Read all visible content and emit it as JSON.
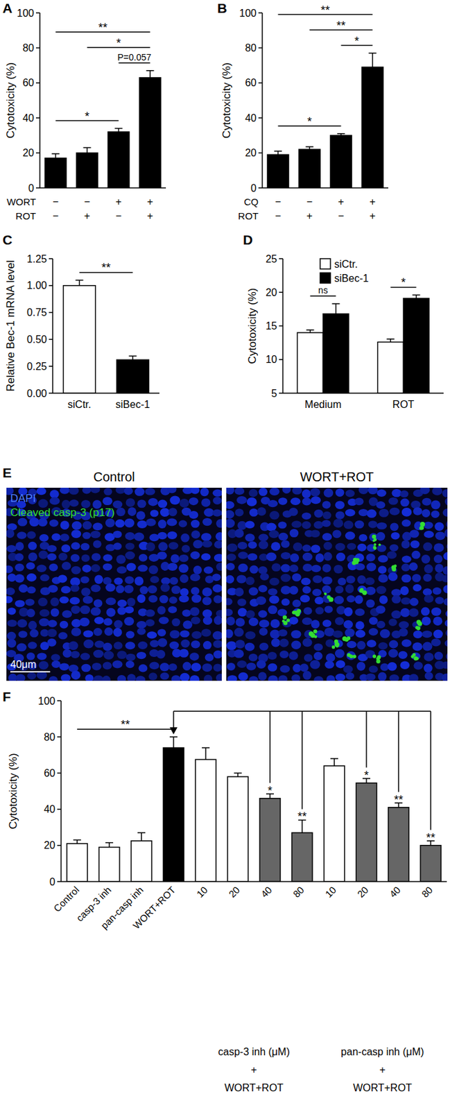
{
  "chart_data": [
    {
      "type": "bar",
      "title": "A",
      "y_label": "Cytotoxicity (%)",
      "categories": [
        null,
        null,
        null,
        null
      ],
      "x_rows": [
        {
          "label": "WORT",
          "values": [
            "−",
            "−",
            "+",
            "+"
          ]
        },
        {
          "label": "ROT",
          "values": [
            "−",
            "+",
            "−",
            "+"
          ]
        }
      ],
      "values": [
        17,
        20,
        32,
        63
      ],
      "errors": [
        2.5,
        3,
        2,
        4
      ],
      "color": "#000000",
      "ylim": [
        0,
        100
      ],
      "yticks": [
        0,
        20,
        40,
        60,
        80,
        100
      ],
      "annotations": [
        {
          "text": "**",
          "from": 0,
          "to": 3
        },
        {
          "text": "*",
          "from": 1,
          "to": 3
        },
        {
          "text": "P=0.057",
          "from": 2,
          "to": 3
        },
        {
          "text": "*",
          "from": 0,
          "to": 2
        }
      ]
    },
    {
      "type": "bar",
      "title": "B",
      "y_label": "Cytotoxicity (%)",
      "categories": [
        null,
        null,
        null,
        null
      ],
      "x_rows": [
        {
          "label": "CQ",
          "values": [
            "−",
            "−",
            "+",
            "+"
          ]
        },
        {
          "label": "ROT",
          "values": [
            "−",
            "+",
            "−",
            "+"
          ]
        }
      ],
      "values": [
        19,
        22,
        30,
        69
      ],
      "errors": [
        2,
        1.5,
        1,
        8
      ],
      "color": "#000000",
      "ylim": [
        0,
        100
      ],
      "yticks": [
        0,
        20,
        40,
        60,
        80,
        100
      ],
      "annotations": [
        {
          "text": "**",
          "from": 0,
          "to": 3
        },
        {
          "text": "**",
          "from": 1,
          "to": 3
        },
        {
          "text": "*",
          "from": 2,
          "to": 3
        },
        {
          "text": "*",
          "from": 0,
          "to": 2
        }
      ]
    },
    {
      "type": "bar",
      "title": "C",
      "y_label": "Relative Bec-1 mRNA level",
      "categories": [
        "siCtr.",
        "siBec-1"
      ],
      "values": [
        1.0,
        0.31
      ],
      "errors": [
        0.05,
        0.035
      ],
      "colors": [
        "#ffffff",
        "#000000"
      ],
      "ylim": [
        0,
        1.25
      ],
      "yticks": [
        {
          "value": 0,
          "label": "0.00"
        },
        {
          "value": 0.25,
          "label": "0.25"
        },
        {
          "value": 0.5,
          "label": "0.50"
        },
        {
          "value": 0.75,
          "label": "0.75"
        },
        {
          "value": 1,
          "label": "1.00"
        },
        {
          "value": 1.25,
          "label": "1.25"
        }
      ],
      "annotations": [
        {
          "text": "**",
          "from": 0,
          "to": 1
        }
      ]
    },
    {
      "type": "bar",
      "title": "D",
      "y_label": "Cytotoxicity (%)",
      "categories": [
        "Medium",
        "ROT"
      ],
      "series": [
        {
          "name": "siCtr.",
          "color": "#ffffff",
          "values": [
            14,
            12.6
          ],
          "errors": [
            0.4,
            0.45
          ]
        },
        {
          "name": "siBec-1",
          "color": "#000000",
          "values": [
            16.8,
            19.1
          ],
          "errors": [
            1.5,
            0.5
          ]
        }
      ],
      "ylim": [
        5,
        25
      ],
      "yticks": [
        5,
        10,
        15,
        20,
        25
      ],
      "legend": "top-left",
      "annotations": [
        {
          "text": "ns",
          "category": 0,
          "from": 0,
          "to": 1
        },
        {
          "text": "*",
          "category": 1,
          "from": 0,
          "to": 1
        }
      ]
    },
    {
      "type": "bar",
      "title": "F",
      "y_label": "Cytotoxicity (%)",
      "categories": [
        "Control",
        "casp-3 inh",
        "pan-casp inh",
        "WORT+ROT",
        "10",
        "20",
        "40",
        "80",
        "10",
        "20",
        "40",
        "80"
      ],
      "values": [
        21,
        19,
        22.5,
        74,
        67.5,
        58,
        46,
        27,
        64,
        54.5,
        41,
        20
      ],
      "errors": [
        2,
        2.5,
        4.5,
        6,
        6.5,
        2,
        2.5,
        7,
        4,
        2.5,
        2.5,
        2.5
      ],
      "colors": [
        "#ffffff",
        "#ffffff",
        "#ffffff",
        "#000000",
        "#ffffff",
        "#ffffff",
        "#666666",
        "#666666",
        "#ffffff",
        "#666666",
        "#666666",
        "#666666"
      ],
      "ylim": [
        0,
        100
      ],
      "yticks": [
        0,
        20,
        40,
        60,
        80,
        100
      ],
      "annotations": [
        {
          "text": "**",
          "from": 0,
          "to": 3
        }
      ],
      "significance_reference": 3,
      "significance": [
        null,
        null,
        null,
        null,
        null,
        null,
        "*",
        "**",
        null,
        "*",
        "**",
        "**"
      ],
      "group_labels": [
        {
          "lines": [
            "casp-3 inh (μM)",
            "+",
            "WORT+ROT"
          ],
          "from": 4,
          "to": 7
        },
        {
          "lines": [
            "pan-casp inh (μM)",
            "+",
            "WORT+ROT"
          ],
          "from": 8,
          "to": 11
        }
      ]
    }
  ],
  "panel_e": {
    "title": "E",
    "images": [
      {
        "label": "Control"
      },
      {
        "label": "WORT+ROT"
      }
    ],
    "channels": [
      {
        "name": "DAPI",
        "color": "#4d7dff"
      },
      {
        "name": "Cleaved casp-3 (p17)",
        "color": "#33dd33"
      }
    ],
    "scale_bar": "40μm"
  }
}
